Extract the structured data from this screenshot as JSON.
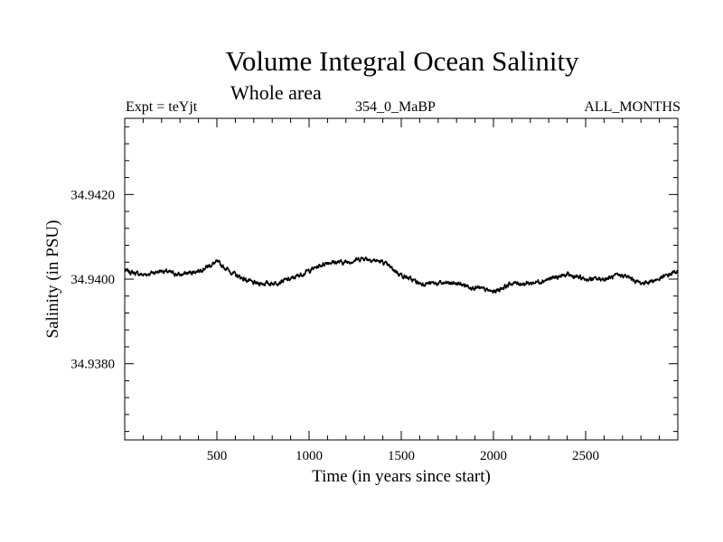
{
  "chart_data": {
    "type": "line",
    "title": "Volume Integral Ocean Salinity",
    "subtitle": "Whole area",
    "header_left": "Expt = teYjt",
    "header_center": "354_0_MaBP",
    "header_right": "ALL_MONTHS",
    "xlabel": "Time (in years since start)",
    "ylabel": "Salinity (in PSU)",
    "xlim": [
      0,
      3000
    ],
    "ylim": [
      34.9362,
      34.9438
    ],
    "x_ticks": [
      500,
      1000,
      1500,
      2000,
      2500
    ],
    "x_tick_labels": [
      "500",
      "1000",
      "1500",
      "2000",
      "2500"
    ],
    "y_ticks": [
      34.938,
      34.94,
      34.942
    ],
    "y_tick_labels": [
      "34.9380",
      "34.9400",
      "34.9420"
    ],
    "grid": false,
    "series": [
      {
        "name": "Salinity",
        "color": "#000000",
        "x": [
          0,
          100,
          200,
          300,
          400,
          500,
          600,
          700,
          800,
          900,
          1000,
          1100,
          1200,
          1300,
          1400,
          1500,
          1600,
          1700,
          1800,
          1900,
          2000,
          2100,
          2200,
          2300,
          2400,
          2500,
          2600,
          2700,
          2800,
          2900,
          3000
        ],
        "values": [
          34.9402,
          34.9401,
          34.9402,
          34.9401,
          34.9402,
          34.9404,
          34.9401,
          34.9399,
          34.9399,
          34.94,
          34.9402,
          34.9404,
          34.9404,
          34.9405,
          34.9404,
          34.9401,
          34.9399,
          34.9399,
          34.9399,
          34.9398,
          34.9397,
          34.9399,
          34.9399,
          34.94,
          34.9401,
          34.94,
          34.94,
          34.9401,
          34.9399,
          34.94,
          34.9402
        ]
      }
    ]
  }
}
